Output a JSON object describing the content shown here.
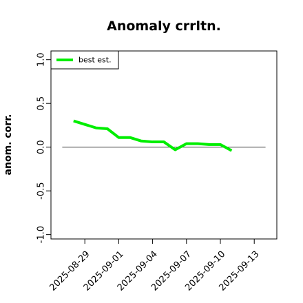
{
  "chart_data": {
    "type": "line",
    "title": "Anomaly crrltn.",
    "xlabel": "",
    "ylabel": "anom. corr.",
    "xlim": [
      "2025-08-26",
      "2025-09-15"
    ],
    "ylim": [
      -1.05,
      1.1
    ],
    "x_ticks": [
      "2025-08-29",
      "2025-09-01",
      "2025-09-04",
      "2025-09-07",
      "2025-09-10",
      "2025-09-13"
    ],
    "y_ticks": [
      -1.0,
      -0.5,
      0.0,
      0.5,
      1.0
    ],
    "y_tick_labels": [
      "-1.0",
      "-0.5",
      "0.0",
      "0.5",
      "1.0"
    ],
    "reference_line": {
      "y": 0,
      "x_from": "2025-08-27",
      "x_to": "2025-09-14",
      "color": "#555555"
    },
    "legend": {
      "position": "top-left"
    },
    "series": [
      {
        "name": "best est.",
        "color": "#00ee00",
        "points": [
          {
            "x": "2025-08-28",
            "y": 0.3
          },
          {
            "x": "2025-08-29",
            "y": 0.26
          },
          {
            "x": "2025-08-30",
            "y": 0.22
          },
          {
            "x": "2025-08-31",
            "y": 0.21
          },
          {
            "x": "2025-09-01",
            "y": 0.11
          },
          {
            "x": "2025-09-02",
            "y": 0.11
          },
          {
            "x": "2025-09-03",
            "y": 0.07
          },
          {
            "x": "2025-09-04",
            "y": 0.06
          },
          {
            "x": "2025-09-05",
            "y": 0.06
          },
          {
            "x": "2025-09-06",
            "y": -0.03
          },
          {
            "x": "2025-09-07",
            "y": 0.04
          },
          {
            "x": "2025-09-08",
            "y": 0.04
          },
          {
            "x": "2025-09-09",
            "y": 0.03
          },
          {
            "x": "2025-09-10",
            "y": 0.03
          },
          {
            "x": "2025-09-11",
            "y": -0.04
          }
        ]
      }
    ]
  }
}
